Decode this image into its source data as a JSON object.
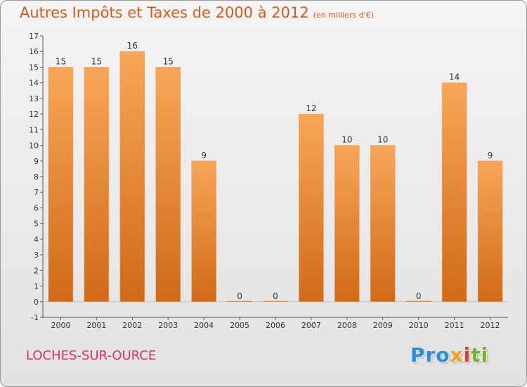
{
  "chart_data": {
    "type": "bar",
    "title": "Autres Impôts et Taxes de 2000 à 2012",
    "subtitle": "(en milliers d'€)",
    "categories": [
      "2000",
      "2001",
      "2002",
      "2003",
      "2004",
      "2005",
      "2006",
      "2007",
      "2008",
      "2009",
      "2010",
      "2011",
      "2012"
    ],
    "values": [
      15,
      15,
      16,
      15,
      9,
      0,
      0,
      12,
      10,
      10,
      0,
      14,
      9
    ],
    "data_labels": [
      "15",
      "15",
      "16",
      "15",
      "9",
      "0",
      "0",
      "12",
      "10",
      "10",
      "0",
      "14",
      "9"
    ],
    "ylim": [
      -1,
      17
    ],
    "yticks": [
      -1,
      0,
      1,
      2,
      3,
      4,
      5,
      6,
      7,
      8,
      9,
      10,
      11,
      12,
      13,
      14,
      15,
      16,
      17
    ],
    "grid": false,
    "bar_color": "#f08a2c"
  },
  "footer": {
    "city": "LOCHES-SUR-OURCE",
    "logo": {
      "part1": "Pro",
      "part2": "x",
      "part3": "i",
      "part4": "ti"
    }
  },
  "colors": {
    "title": "#d55a1d",
    "city": "#d8306a"
  }
}
